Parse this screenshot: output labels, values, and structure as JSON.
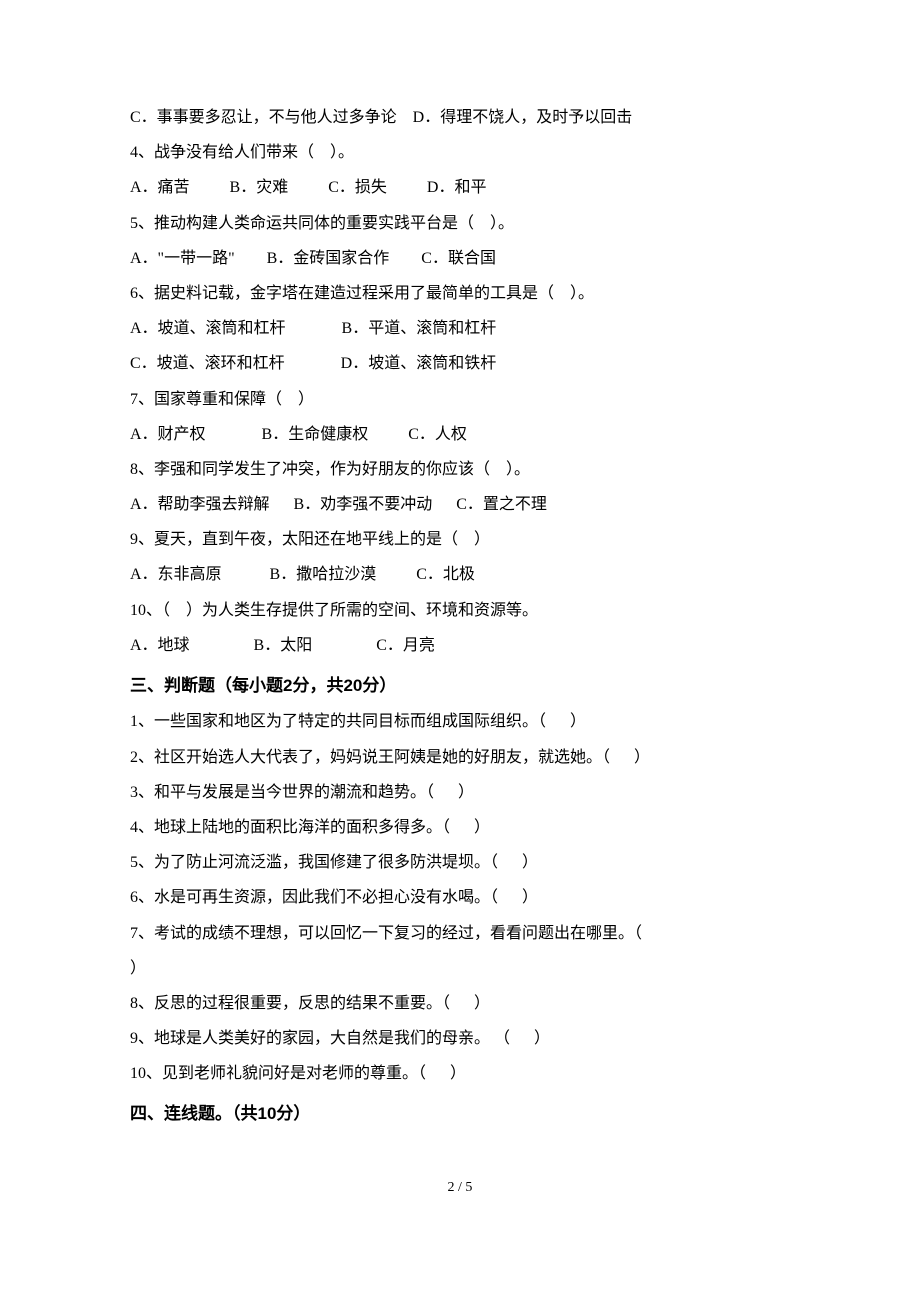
{
  "q_prev_cd": "C．事事要多忍让，不与他人过多争论    D．得理不饶人，及时予以回击",
  "q4": {
    "stem": "4、战争没有给人们带来（    ）。",
    "opts": "A．痛苦          B．灾难          C．损失          D．和平"
  },
  "q5": {
    "stem": "5、推动构建人类命运共同体的重要实践平台是（    ）。",
    "opts": "A．\"一带一路\"        B．金砖国家合作        C．联合国"
  },
  "q6": {
    "stem": "6、据史料记载，金字塔在建造过程采用了最简单的工具是（    ）。",
    "opts_ab": "A．坡道、滚筒和杠杆              B．平道、滚筒和杠杆",
    "opts_cd": "C．坡道、滚环和杠杆              D．坡道、滚筒和铁杆"
  },
  "q7": {
    "stem": "7、国家尊重和保障（    ）",
    "opts": "A．财产权              B．生命健康权          C．人权"
  },
  "q8": {
    "stem": "8、李强和同学发生了冲突，作为好朋友的你应该（    ）。",
    "opts": "A．帮助李强去辩解      B．劝李强不要冲动      C．置之不理"
  },
  "q9": {
    "stem": "9、夏天，直到午夜，太阳还在地平线上的是（    ）",
    "opts": "A．东非高原            B．撒哈拉沙漠          C．北极"
  },
  "q10": {
    "stem": "10、（    ）为人类生存提供了所需的空间、环境和资源等。",
    "opts": "A．地球                B．太阳                C．月亮"
  },
  "section3": "三、判断题（每小题2分，共20分）",
  "j1": "1、一些国家和地区为了特定的共同目标而组成国际组织。（      ）",
  "j2": "2、社区开始选人大代表了，妈妈说王阿姨是她的好朋友，就选她。（      ）",
  "j3": "3、和平与发展是当今世界的潮流和趋势。（      ）",
  "j4": "4、地球上陆地的面积比海洋的面积多得多。（      ）",
  "j5": "5、为了防止河流泛滥，我国修建了很多防洪堤坝。（      ）",
  "j6": "6、水是可再生资源，因此我们不必担心没有水喝。（      ）",
  "j7a": "7、考试的成绩不理想，可以回忆一下复习的经过，看看问题出在哪里。（",
  "j7b": "）",
  "j8": "8、反思的过程很重要，反思的结果不重要。（      ）",
  "j9": "9、地球是人类美好的家园，大自然是我们的母亲。 （      ）",
  "j10": "10、见到老师礼貌问好是对老师的尊重。（      ）",
  "section4": "四、连线题。（共10分）",
  "pagenum": "2 / 5"
}
